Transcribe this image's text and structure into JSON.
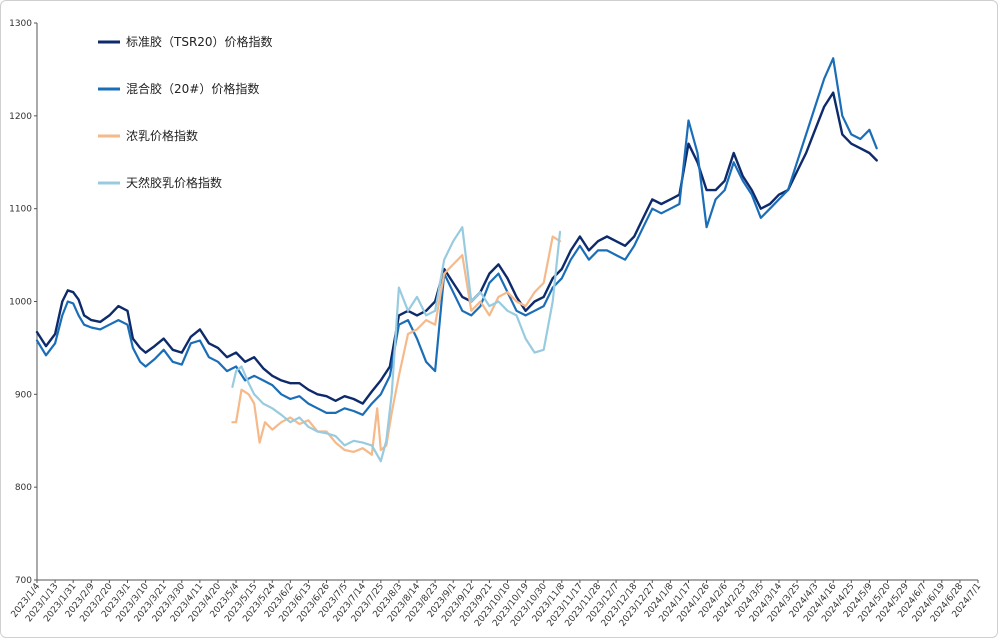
{
  "chart_data": {
    "type": "line",
    "title": "",
    "xlabel": "",
    "ylabel": "",
    "ylim": [
      700,
      1300
    ],
    "yticks": [
      700,
      800,
      900,
      1000,
      1100,
      1200,
      1300
    ],
    "grid": false,
    "legend_position": "top-left",
    "x_tick_labels": [
      "2023/1/4",
      "2023/1/13",
      "2023/1/31",
      "2023/2/9",
      "2023/2/20",
      "2023/3/1",
      "2023/3/10",
      "2023/3/21",
      "2023/3/30",
      "2023/4/11",
      "2023/4/20",
      "2023/5/4",
      "2023/5/15",
      "2023/5/24",
      "2023/6/2",
      "2023/6/13",
      "2023/6/26",
      "2023/7/5",
      "2023/7/14",
      "2023/7/25",
      "2023/8/3",
      "2023/8/14",
      "2023/8/23",
      "2023/9/1",
      "2023/9/12",
      "2023/9/21",
      "2023/10/10",
      "2023/10/19",
      "2023/10/30",
      "2023/11/8",
      "2023/11/17",
      "2023/11/28",
      "2023/12/7",
      "2023/12/18",
      "2023/12/27",
      "2024/1/8",
      "2024/1/17",
      "2024/1/26",
      "2024/2/6",
      "2024/2/23",
      "2024/3/5",
      "2024/3/14",
      "2024/3/25",
      "2024/4/3",
      "2024/4/16",
      "2024/4/25",
      "2024/5/9",
      "2024/5/20",
      "2024/5/29",
      "2024/6/7",
      "2024/6/19",
      "2024/6/28",
      "2024/7/1"
    ],
    "series": [
      {
        "name": "标准胶（TSR20）价格指数",
        "color": "#0d2a6b",
        "points": [
          [
            0,
            967
          ],
          [
            0.5,
            952
          ],
          [
            1,
            965
          ],
          [
            1.4,
            1000
          ],
          [
            1.7,
            1012
          ],
          [
            2,
            1010
          ],
          [
            2.3,
            1002
          ],
          [
            2.6,
            985
          ],
          [
            3,
            980
          ],
          [
            3.5,
            978
          ],
          [
            4,
            985
          ],
          [
            4.5,
            995
          ],
          [
            5,
            990
          ],
          [
            5.3,
            960
          ],
          [
            5.7,
            950
          ],
          [
            6,
            945
          ],
          [
            6.5,
            952
          ],
          [
            7,
            960
          ],
          [
            7.5,
            948
          ],
          [
            8,
            945
          ],
          [
            8.5,
            962
          ],
          [
            9,
            970
          ],
          [
            9.5,
            955
          ],
          [
            10,
            950
          ],
          [
            10.5,
            940
          ],
          [
            11,
            945
          ],
          [
            11.5,
            935
          ],
          [
            12,
            940
          ],
          [
            12.5,
            928
          ],
          [
            13,
            920
          ],
          [
            13.5,
            915
          ],
          [
            14,
            912
          ],
          [
            14.5,
            912
          ],
          [
            15,
            905
          ],
          [
            15.5,
            900
          ],
          [
            16,
            898
          ],
          [
            16.5,
            893
          ],
          [
            17,
            898
          ],
          [
            17.5,
            895
          ],
          [
            18,
            890
          ],
          [
            18.5,
            903
          ],
          [
            19,
            915
          ],
          [
            19.5,
            930
          ],
          [
            20,
            985
          ],
          [
            20.5,
            990
          ],
          [
            21,
            985
          ],
          [
            21.5,
            990
          ],
          [
            22,
            1000
          ],
          [
            22.5,
            1035
          ],
          [
            23,
            1020
          ],
          [
            23.5,
            1005
          ],
          [
            24,
            1000
          ],
          [
            24.5,
            1010
          ],
          [
            25,
            1030
          ],
          [
            25.5,
            1040
          ],
          [
            26,
            1025
          ],
          [
            26.5,
            1005
          ],
          [
            27,
            990
          ],
          [
            27.5,
            1000
          ],
          [
            28,
            1005
          ],
          [
            28.5,
            1025
          ],
          [
            29,
            1035
          ],
          [
            29.5,
            1055
          ],
          [
            30,
            1070
          ],
          [
            30.5,
            1055
          ],
          [
            31,
            1065
          ],
          [
            31.5,
            1070
          ],
          [
            32,
            1065
          ],
          [
            32.5,
            1060
          ],
          [
            33,
            1070
          ],
          [
            33.5,
            1090
          ],
          [
            34,
            1110
          ],
          [
            34.5,
            1105
          ],
          [
            35,
            1110
          ],
          [
            35.5,
            1115
          ],
          [
            36,
            1170
          ],
          [
            36.5,
            1150
          ],
          [
            37,
            1120
          ],
          [
            37.5,
            1120
          ],
          [
            38,
            1130
          ],
          [
            38.5,
            1160
          ],
          [
            39,
            1135
          ],
          [
            39.5,
            1120
          ],
          [
            40,
            1100
          ],
          [
            40.5,
            1105
          ],
          [
            41,
            1115
          ],
          [
            41.5,
            1120
          ],
          [
            42,
            1140
          ],
          [
            42.5,
            1160
          ],
          [
            43,
            1185
          ],
          [
            43.5,
            1210
          ],
          [
            44,
            1225
          ],
          [
            44.5,
            1180
          ],
          [
            45,
            1170
          ],
          [
            45.5,
            1165
          ],
          [
            46,
            1160
          ],
          [
            46.4,
            1152
          ]
        ]
      },
      {
        "name": "混合胶（20#）价格指数",
        "color": "#1a6eb8",
        "points": [
          [
            0,
            958
          ],
          [
            0.5,
            942
          ],
          [
            1,
            955
          ],
          [
            1.4,
            985
          ],
          [
            1.7,
            1000
          ],
          [
            2,
            998
          ],
          [
            2.3,
            985
          ],
          [
            2.6,
            975
          ],
          [
            3,
            972
          ],
          [
            3.5,
            970
          ],
          [
            4,
            975
          ],
          [
            4.5,
            980
          ],
          [
            5,
            975
          ],
          [
            5.3,
            950
          ],
          [
            5.7,
            935
          ],
          [
            6,
            930
          ],
          [
            6.5,
            938
          ],
          [
            7,
            948
          ],
          [
            7.5,
            935
          ],
          [
            8,
            932
          ],
          [
            8.5,
            955
          ],
          [
            9,
            958
          ],
          [
            9.5,
            940
          ],
          [
            10,
            935
          ],
          [
            10.5,
            925
          ],
          [
            11,
            930
          ],
          [
            11.5,
            915
          ],
          [
            12,
            920
          ],
          [
            12.5,
            915
          ],
          [
            13,
            910
          ],
          [
            13.5,
            900
          ],
          [
            14,
            895
          ],
          [
            14.5,
            898
          ],
          [
            15,
            890
          ],
          [
            15.5,
            885
          ],
          [
            16,
            880
          ],
          [
            16.5,
            880
          ],
          [
            17,
            885
          ],
          [
            17.5,
            882
          ],
          [
            18,
            878
          ],
          [
            18.5,
            890
          ],
          [
            19,
            900
          ],
          [
            19.5,
            920
          ],
          [
            20,
            975
          ],
          [
            20.5,
            980
          ],
          [
            21,
            960
          ],
          [
            21.5,
            935
          ],
          [
            22,
            925
          ],
          [
            22.5,
            1030
          ],
          [
            23,
            1010
          ],
          [
            23.5,
            990
          ],
          [
            24,
            985
          ],
          [
            24.5,
            995
          ],
          [
            25,
            1020
          ],
          [
            25.5,
            1030
          ],
          [
            26,
            1010
          ],
          [
            26.5,
            990
          ],
          [
            27,
            985
          ],
          [
            27.5,
            990
          ],
          [
            28,
            995
          ],
          [
            28.5,
            1015
          ],
          [
            29,
            1025
          ],
          [
            29.5,
            1045
          ],
          [
            30,
            1060
          ],
          [
            30.5,
            1045
          ],
          [
            31,
            1055
          ],
          [
            31.5,
            1055
          ],
          [
            32,
            1050
          ],
          [
            32.5,
            1045
          ],
          [
            33,
            1060
          ],
          [
            33.5,
            1080
          ],
          [
            34,
            1100
          ],
          [
            34.5,
            1095
          ],
          [
            35,
            1100
          ],
          [
            35.5,
            1105
          ],
          [
            36,
            1195
          ],
          [
            36.5,
            1160
          ],
          [
            37,
            1080
          ],
          [
            37.5,
            1110
          ],
          [
            38,
            1120
          ],
          [
            38.5,
            1150
          ],
          [
            39,
            1130
          ],
          [
            39.5,
            1115
          ],
          [
            40,
            1090
          ],
          [
            40.5,
            1100
          ],
          [
            41,
            1110
          ],
          [
            41.5,
            1120
          ],
          [
            42,
            1150
          ],
          [
            42.5,
            1180
          ],
          [
            43,
            1210
          ],
          [
            43.5,
            1240
          ],
          [
            44,
            1262
          ],
          [
            44.5,
            1200
          ],
          [
            45,
            1180
          ],
          [
            45.5,
            1175
          ],
          [
            46,
            1185
          ],
          [
            46.4,
            1165
          ]
        ]
      },
      {
        "name": "浓乳价格指数",
        "color": "#f5b98a",
        "points": [
          [
            10.8,
            870
          ],
          [
            11,
            870
          ],
          [
            11.3,
            905
          ],
          [
            11.7,
            900
          ],
          [
            12,
            890
          ],
          [
            12.3,
            848
          ],
          [
            12.6,
            870
          ],
          [
            13,
            862
          ],
          [
            13.5,
            870
          ],
          [
            14,
            875
          ],
          [
            14.5,
            868
          ],
          [
            15,
            872
          ],
          [
            15.5,
            860
          ],
          [
            16,
            860
          ],
          [
            16.5,
            848
          ],
          [
            17,
            840
          ],
          [
            17.5,
            838
          ],
          [
            18,
            842
          ],
          [
            18.5,
            835
          ],
          [
            18.8,
            885
          ],
          [
            19,
            840
          ],
          [
            19.3,
            845
          ],
          [
            19.6,
            880
          ],
          [
            20,
            920
          ],
          [
            20.5,
            965
          ],
          [
            21,
            970
          ],
          [
            21.5,
            980
          ],
          [
            22,
            975
          ],
          [
            22.5,
            1030
          ],
          [
            23,
            1040
          ],
          [
            23.5,
            1050
          ],
          [
            24,
            990
          ],
          [
            24.5,
            1000
          ],
          [
            25,
            985
          ],
          [
            25.5,
            1005
          ],
          [
            26,
            1010
          ],
          [
            26.5,
            1000
          ],
          [
            27,
            995
          ],
          [
            27.5,
            1010
          ],
          [
            28,
            1020
          ],
          [
            28.5,
            1070
          ],
          [
            28.9,
            1065
          ]
        ]
      },
      {
        "name": "天然胶乳价格指数",
        "color": "#98cbe0",
        "points": [
          [
            10.8,
            908
          ],
          [
            11,
            925
          ],
          [
            11.3,
            930
          ],
          [
            11.7,
            912
          ],
          [
            12,
            900
          ],
          [
            12.5,
            890
          ],
          [
            13,
            885
          ],
          [
            13.5,
            878
          ],
          [
            14,
            870
          ],
          [
            14.5,
            875
          ],
          [
            15,
            865
          ],
          [
            15.5,
            860
          ],
          [
            16,
            858
          ],
          [
            16.5,
            855
          ],
          [
            17,
            845
          ],
          [
            17.5,
            850
          ],
          [
            18,
            848
          ],
          [
            18.5,
            845
          ],
          [
            19,
            828
          ],
          [
            19.3,
            850
          ],
          [
            19.6,
            900
          ],
          [
            20,
            1015
          ],
          [
            20.5,
            990
          ],
          [
            21,
            1005
          ],
          [
            21.5,
            985
          ],
          [
            22,
            990
          ],
          [
            22.5,
            1045
          ],
          [
            23,
            1065
          ],
          [
            23.5,
            1080
          ],
          [
            24,
            1000
          ],
          [
            24.5,
            1010
          ],
          [
            25,
            995
          ],
          [
            25.5,
            1000
          ],
          [
            26,
            990
          ],
          [
            26.5,
            985
          ],
          [
            27,
            960
          ],
          [
            27.5,
            945
          ],
          [
            28,
            948
          ],
          [
            28.5,
            1000
          ],
          [
            28.9,
            1075
          ]
        ]
      }
    ]
  }
}
